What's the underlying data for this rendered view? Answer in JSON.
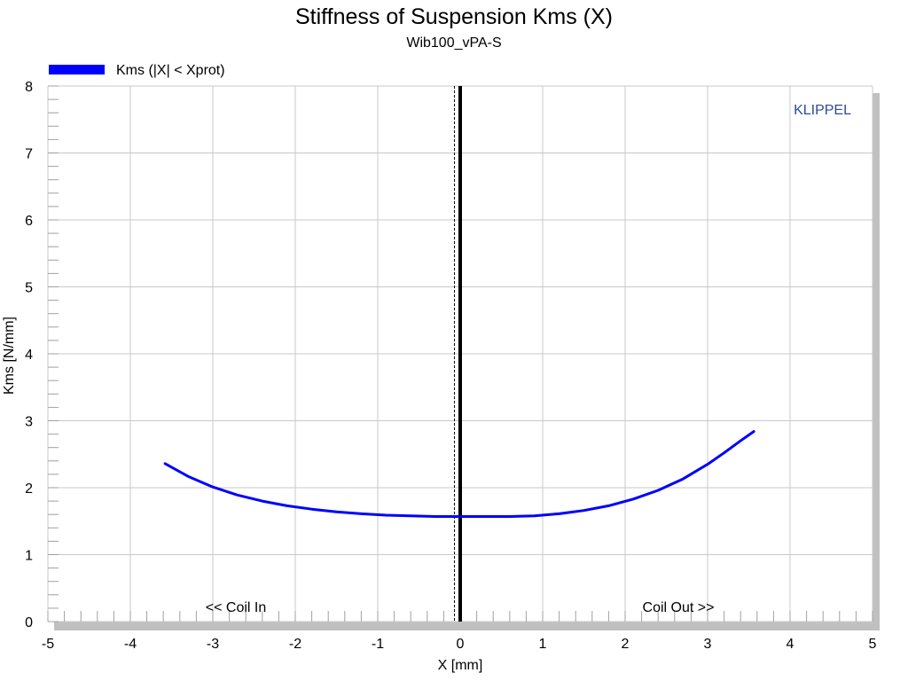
{
  "chart_data": {
    "type": "line",
    "title": "Stiffness of Suspension Kms (X)",
    "subtitle": "Wib100_vPA-S",
    "xlabel": "X [mm]",
    "ylabel": "Kms [N/mm]",
    "xlim": [
      -5,
      5
    ],
    "ylim": [
      0,
      8
    ],
    "x_ticks": [
      -5,
      -4,
      -3,
      -2,
      -1,
      0,
      1,
      2,
      3,
      4,
      5
    ],
    "y_ticks": [
      0,
      1,
      2,
      3,
      4,
      5,
      6,
      7,
      8
    ],
    "x_tick_labels": [
      "-5",
      "-4",
      "-3",
      "-2",
      "-1",
      "0",
      "1",
      "2",
      "3",
      "4",
      "5"
    ],
    "y_tick_labels": [
      "0",
      "1",
      "2",
      "3",
      "4",
      "5",
      "6",
      "7",
      "8"
    ],
    "grid": true,
    "legend_position": "top-left",
    "series": [
      {
        "name": "Kms (|X| < Xprot)",
        "color": "#0000ff",
        "x": [
          -3.58,
          -3.3,
          -3.0,
          -2.7,
          -2.4,
          -2.1,
          -1.8,
          -1.5,
          -1.2,
          -0.9,
          -0.6,
          -0.3,
          0.0,
          0.3,
          0.6,
          0.9,
          1.2,
          1.5,
          1.8,
          2.1,
          2.4,
          2.7,
          3.0,
          3.2,
          3.4,
          3.56
        ],
        "y": [
          2.36,
          2.17,
          2.01,
          1.89,
          1.8,
          1.73,
          1.68,
          1.64,
          1.61,
          1.59,
          1.58,
          1.57,
          1.57,
          1.57,
          1.57,
          1.58,
          1.61,
          1.66,
          1.73,
          1.83,
          1.96,
          2.13,
          2.35,
          2.52,
          2.7,
          2.84
        ]
      }
    ],
    "vertical_lines": [
      {
        "x": 0.0,
        "style": "solid",
        "color": "#000000"
      },
      {
        "x": -0.07,
        "style": "dashed",
        "color": "#000000"
      }
    ],
    "annotations": {
      "coil_in": "<< Coil In",
      "coil_out": "Coil Out >>",
      "brand": "KLIPPEL"
    }
  }
}
